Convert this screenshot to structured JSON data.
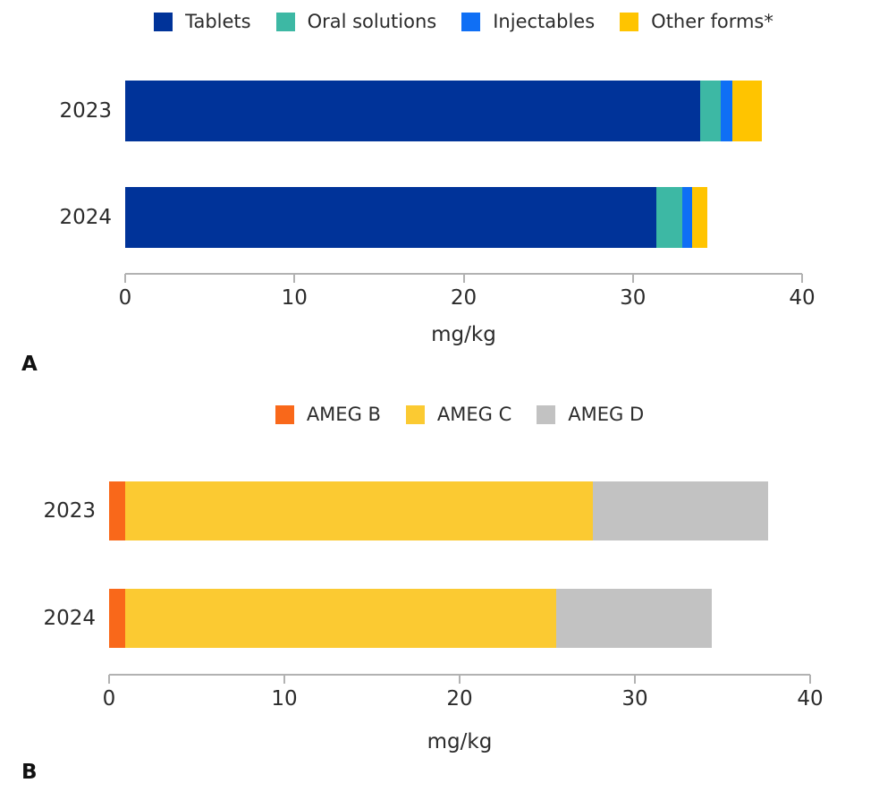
{
  "page": {
    "background": "#ffffff",
    "axis_color": "#b2b2b2",
    "text_color": "#2b2b2b"
  },
  "chart_data": [
    {
      "panel_label": "A",
      "type": "bar",
      "subtype": "horizontal-stacked",
      "categories": [
        "2023",
        "2024"
      ],
      "series": [
        {
          "name": "Tablets",
          "color": "#003399",
          "values": [
            34.0,
            31.4
          ]
        },
        {
          "name": "Oral solutions",
          "color": "#3db8a4",
          "values": [
            1.2,
            1.5
          ]
        },
        {
          "name": "Injectables",
          "color": "#0f6ff5",
          "values": [
            0.7,
            0.6
          ]
        },
        {
          "name": "Other forms*",
          "color": "#ffc400",
          "values": [
            1.7,
            0.9
          ]
        }
      ],
      "totals": [
        37.6,
        34.4
      ],
      "xlabel": "mg/kg",
      "xlim": [
        0,
        40
      ],
      "xticks": [
        0,
        10,
        20,
        30,
        40
      ],
      "legend_position": "top-center",
      "grid": false
    },
    {
      "panel_label": "B",
      "type": "bar",
      "subtype": "horizontal-stacked",
      "categories": [
        "2023",
        "2024"
      ],
      "series": [
        {
          "name": "AMEG B",
          "color": "#f9681a",
          "values": [
            0.9,
            0.9
          ]
        },
        {
          "name": "AMEG C",
          "color": "#fbca32",
          "values": [
            26.7,
            24.6
          ]
        },
        {
          "name": "AMEG D",
          "color": "#c2c2c2",
          "values": [
            10.0,
            8.9
          ]
        }
      ],
      "totals": [
        37.6,
        34.4
      ],
      "xlabel": "mg/kg",
      "xlim": [
        0,
        40
      ],
      "xticks": [
        0,
        10,
        20,
        30,
        40
      ],
      "legend_position": "top-center",
      "grid": false
    }
  ]
}
